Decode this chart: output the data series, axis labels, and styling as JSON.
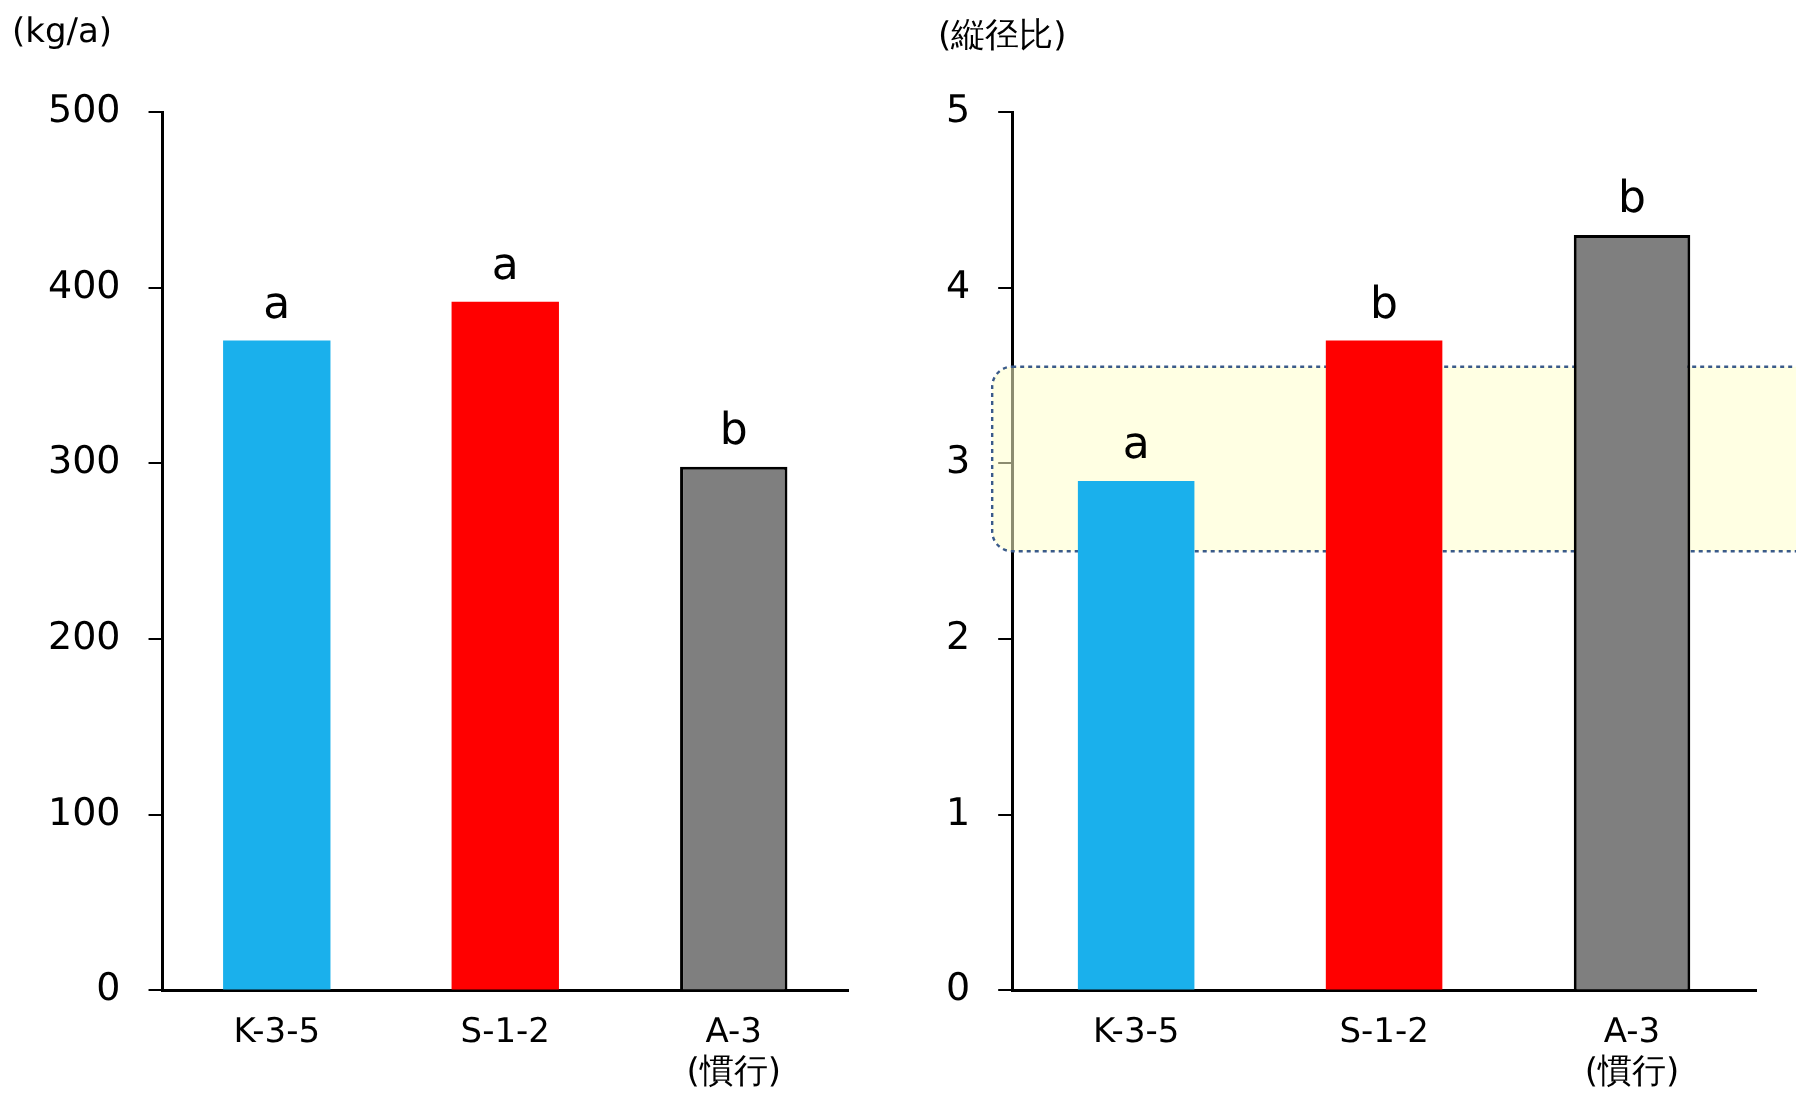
{
  "chart_data": [
    {
      "type": "bar",
      "ylabel": "(kg/a)",
      "categories": [
        "K-3-5",
        "S-1-2",
        "A-3\n(慣行)"
      ],
      "values": [
        370,
        392,
        298
      ],
      "colors": [
        "#1ab0ec",
        "#ff0000",
        "#7f7f7f"
      ],
      "ylim": [
        0,
        500
      ],
      "yticks": [
        0,
        100,
        200,
        300,
        400,
        500
      ],
      "grid": false,
      "legend": false,
      "annotations": [
        {
          "text": "a",
          "x": "K-3-5",
          "y": 370
        },
        {
          "text": "a",
          "x": "S-1-2",
          "y": 392
        },
        {
          "text": "b",
          "x": "A-3\n(慣行)",
          "y": 298
        }
      ]
    },
    {
      "type": "bar",
      "ylabel": "(縦径比)",
      "categories": [
        "K-3-5",
        "S-1-2",
        "A-3\n(慣行)"
      ],
      "values": [
        2.9,
        3.7,
        4.3
      ],
      "colors": [
        "#1ab0ec",
        "#ff0000",
        "#7f7f7f"
      ],
      "ylim": [
        0,
        5
      ],
      "yticks": [
        0,
        1,
        2,
        3,
        4,
        5
      ],
      "grid": false,
      "legend": false,
      "bands": [
        {
          "axis": "y",
          "from": 2.5,
          "to": 3.55,
          "color": "#ffffcc"
        }
      ],
      "annotations": [
        {
          "text": "a",
          "x": "K-3-5",
          "y": 2.9
        },
        {
          "text": "b",
          "x": "S-1-2",
          "y": 3.7
        },
        {
          "text": "b",
          "x": "A-3\n(慣行)",
          "y": 4.3
        }
      ]
    }
  ]
}
